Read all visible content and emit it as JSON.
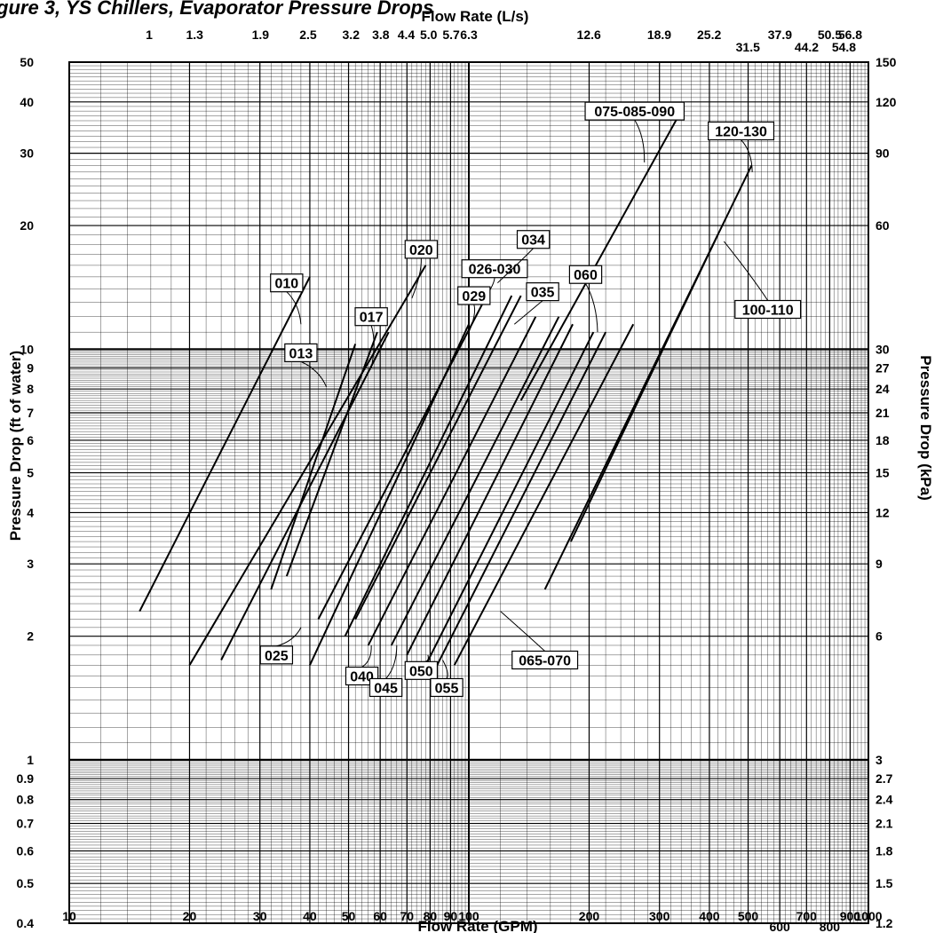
{
  "header": {
    "title": "gure 3, YS Chillers, Evaporator Pressure Drops",
    "top_axis_title": "Flow Rate (L/s)",
    "bottom_axis_title": "Flow Rate (GPM)",
    "left_axis_title": "Pressure Drop (ft of water)",
    "right_axis_title": "Pressure Drop (kPa)"
  },
  "chart_data": {
    "type": "line",
    "x_scale": "log",
    "y_scale": "log",
    "xlim": [
      10,
      1000
    ],
    "ylim": [
      0.4,
      50
    ],
    "grid": true,
    "title": "gure 3, YS Chillers, Evaporator Pressure Drops",
    "xlabel": "Flow Rate (GPM)",
    "ylabel": "Pressure Drop (ft of water)",
    "x_ticks": [
      {
        "v": 10,
        "label": "10"
      },
      {
        "v": 20,
        "label": "20"
      },
      {
        "v": 30,
        "label": "30"
      },
      {
        "v": 40,
        "label": "40"
      },
      {
        "v": 50,
        "label": "50"
      },
      {
        "v": 60,
        "label": "60"
      },
      {
        "v": 70,
        "label": "70"
      },
      {
        "v": 80,
        "label": "80"
      },
      {
        "v": 90,
        "label": "90"
      },
      {
        "v": 100,
        "label": "100"
      },
      {
        "v": 200,
        "label": "200"
      },
      {
        "v": 300,
        "label": "300"
      },
      {
        "v": 400,
        "label": "400"
      },
      {
        "v": 500,
        "label": "500"
      },
      {
        "v": 600,
        "label": "600"
      },
      {
        "v": 700,
        "label": "700"
      },
      {
        "v": 800,
        "label": "800"
      },
      {
        "v": 900,
        "label": "900"
      },
      {
        "v": 1000,
        "label": "1000"
      }
    ],
    "y_ticks": [
      {
        "v": 0.4,
        "label": "0.4"
      },
      {
        "v": 0.5,
        "label": "0.5"
      },
      {
        "v": 0.6,
        "label": "0.6"
      },
      {
        "v": 0.7,
        "label": "0.7"
      },
      {
        "v": 0.8,
        "label": "0.8"
      },
      {
        "v": 0.9,
        "label": "0.9"
      },
      {
        "v": 1,
        "label": "1"
      },
      {
        "v": 2,
        "label": "2"
      },
      {
        "v": 3,
        "label": "3"
      },
      {
        "v": 4,
        "label": "4"
      },
      {
        "v": 5,
        "label": "5"
      },
      {
        "v": 6,
        "label": "6"
      },
      {
        "v": 7,
        "label": "7"
      },
      {
        "v": 8,
        "label": "8"
      },
      {
        "v": 9,
        "label": "9"
      },
      {
        "v": 10,
        "label": "10"
      },
      {
        "v": 20,
        "label": "20"
      },
      {
        "v": 30,
        "label": "30"
      },
      {
        "v": 40,
        "label": "40"
      },
      {
        "v": 50,
        "label": "50"
      }
    ],
    "top_ticks": [
      {
        "gpm": 15.85,
        "label": "1"
      },
      {
        "gpm": 20.6,
        "label": "1.3"
      },
      {
        "gpm": 30.1,
        "label": "1.9"
      },
      {
        "gpm": 39.6,
        "label": "2.5"
      },
      {
        "gpm": 50.7,
        "label": "3.2"
      },
      {
        "gpm": 60.2,
        "label": "3.8"
      },
      {
        "gpm": 69.7,
        "label": "4.4"
      },
      {
        "gpm": 79.3,
        "label": "5.0"
      },
      {
        "gpm": 90.3,
        "label": "5.7"
      },
      {
        "gpm": 100,
        "label": "6.3"
      },
      {
        "gpm": 199.7,
        "label": "12.6"
      },
      {
        "gpm": 299.6,
        "label": "18.9"
      },
      {
        "gpm": 399.4,
        "label": "25.2"
      },
      {
        "gpm": 499.3,
        "label": "31.5"
      },
      {
        "gpm": 600.7,
        "label": "37.9"
      },
      {
        "gpm": 700.6,
        "label": "44.2"
      },
      {
        "gpm": 800.4,
        "label": "50.5"
      },
      {
        "gpm": 868.6,
        "label": "54.8"
      },
      {
        "gpm": 900.3,
        "label": "56.8"
      }
    ],
    "right_ticks": [
      {
        "ft": 0.4,
        "label": "1.2"
      },
      {
        "ft": 0.5,
        "label": "1.5"
      },
      {
        "ft": 0.6,
        "label": "1.8"
      },
      {
        "ft": 0.7,
        "label": "2.1"
      },
      {
        "ft": 0.8,
        "label": "2.4"
      },
      {
        "ft": 0.9,
        "label": "2.7"
      },
      {
        "ft": 1,
        "label": "3"
      },
      {
        "ft": 2,
        "label": "6"
      },
      {
        "ft": 3,
        "label": "9"
      },
      {
        "ft": 4,
        "label": "12"
      },
      {
        "ft": 5,
        "label": "15"
      },
      {
        "ft": 6,
        "label": "18"
      },
      {
        "ft": 7,
        "label": "21"
      },
      {
        "ft": 8,
        "label": "24"
      },
      {
        "ft": 9,
        "label": "27"
      },
      {
        "ft": 10,
        "label": "30"
      },
      {
        "ft": 20,
        "label": "60"
      },
      {
        "ft": 30,
        "label": "90"
      },
      {
        "ft": 40,
        "label": "120"
      },
      {
        "ft": 50,
        "label": "150"
      }
    ],
    "series": [
      {
        "name": "010",
        "points": [
          [
            15,
            2.3
          ],
          [
            40,
            15
          ]
        ]
      },
      {
        "name": "013",
        "points": [
          [
            32,
            2.6
          ],
          [
            52,
            10.3
          ]
        ]
      },
      {
        "name": "017",
        "points": [
          [
            35,
            2.8
          ],
          [
            59,
            11
          ]
        ]
      },
      {
        "name": "020",
        "points": [
          [
            20,
            1.7
          ],
          [
            78,
            16
          ]
        ]
      },
      {
        "name": "025",
        "points": [
          [
            24,
            1.75
          ],
          [
            63,
            11
          ]
        ]
      },
      {
        "name": "026-030",
        "points": [
          [
            42,
            2.2
          ],
          [
            113,
            14
          ]
        ]
      },
      {
        "name": "029",
        "points": [
          [
            40,
            1.7
          ],
          [
            100,
            11.5
          ]
        ]
      },
      {
        "name": "034",
        "points": [
          [
            49,
            2.0
          ],
          [
            128,
            13.5
          ]
        ]
      },
      {
        "name": "035",
        "points": [
          [
            52,
            2.2
          ],
          [
            135,
            13.5
          ]
        ]
      },
      {
        "name": "040",
        "points": [
          [
            56,
            1.9
          ],
          [
            147,
            12
          ]
        ]
      },
      {
        "name": "045",
        "points": [
          [
            64,
            1.9
          ],
          [
            168,
            12
          ]
        ]
      },
      {
        "name": "050",
        "points": [
          [
            70,
            1.8
          ],
          [
            182,
            11.5
          ]
        ]
      },
      {
        "name": "055",
        "points": [
          [
            78,
            1.7
          ],
          [
            205,
            11
          ]
        ]
      },
      {
        "name": "060",
        "points": [
          [
            82,
            1.65
          ],
          [
            220,
            11
          ]
        ]
      },
      {
        "name": "065-070",
        "points": [
          [
            92,
            1.7
          ],
          [
            258,
            11.5
          ]
        ]
      },
      {
        "name": "075-085-090",
        "points": [
          [
            135,
            7.5
          ],
          [
            345,
            39
          ]
        ]
      },
      {
        "name": "100-110",
        "points": [
          [
            180,
            3.4
          ],
          [
            420,
            19
          ]
        ]
      },
      {
        "name": "120-130",
        "points": [
          [
            155,
            2.6
          ],
          [
            510,
            28
          ]
        ]
      }
    ],
    "annotations": [
      {
        "text": "010",
        "x": 35,
        "y": 14.5,
        "tx": 38,
        "ty": 11.5
      },
      {
        "text": "013",
        "x": 38,
        "y": 9.8,
        "tx": 44,
        "ty": 8.1
      },
      {
        "text": "017",
        "x": 57,
        "y": 12,
        "tx": 57,
        "ty": 9.0
      },
      {
        "text": "020",
        "x": 76,
        "y": 17.5,
        "tx": 72,
        "ty": 13.3
      },
      {
        "text": "025",
        "x": 33,
        "y": 1.8,
        "tx": 38,
        "ty": 2.1
      },
      {
        "text": "026-030",
        "x": 116,
        "y": 15.7,
        "tx": 109,
        "ty": 13.2
      },
      {
        "text": "029",
        "x": 103,
        "y": 13.5,
        "tx": 100,
        "ty": 11.0
      },
      {
        "text": "034",
        "x": 145,
        "y": 18.5,
        "tx": 118,
        "ty": 14.5
      },
      {
        "text": "035",
        "x": 153,
        "y": 13.8,
        "tx": 130,
        "ty": 11.5
      },
      {
        "text": "040",
        "x": 54,
        "y": 1.6,
        "tx": 57,
        "ty": 1.9
      },
      {
        "text": "045",
        "x": 62,
        "y": 1.5,
        "tx": 66,
        "ty": 1.9
      },
      {
        "text": "050",
        "x": 76,
        "y": 1.65,
        "tx": 79,
        "ty": 1.8
      },
      {
        "text": "055",
        "x": 88,
        "y": 1.5,
        "tx": 86,
        "ty": 1.75
      },
      {
        "text": "060",
        "x": 196,
        "y": 15.2,
        "tx": 210,
        "ty": 11.0
      },
      {
        "text": "065-070",
        "x": 155,
        "y": 1.75,
        "tx": 120,
        "ty": 2.3
      },
      {
        "text": "075-085-090",
        "x": 260,
        "y": 38,
        "tx": 275,
        "ty": 28.5
      },
      {
        "text": "100-110",
        "x": 560,
        "y": 12.5,
        "tx": 435,
        "ty": 18.3
      },
      {
        "text": "120-130",
        "x": 480,
        "y": 34,
        "tx": 512,
        "ty": 27
      }
    ]
  }
}
